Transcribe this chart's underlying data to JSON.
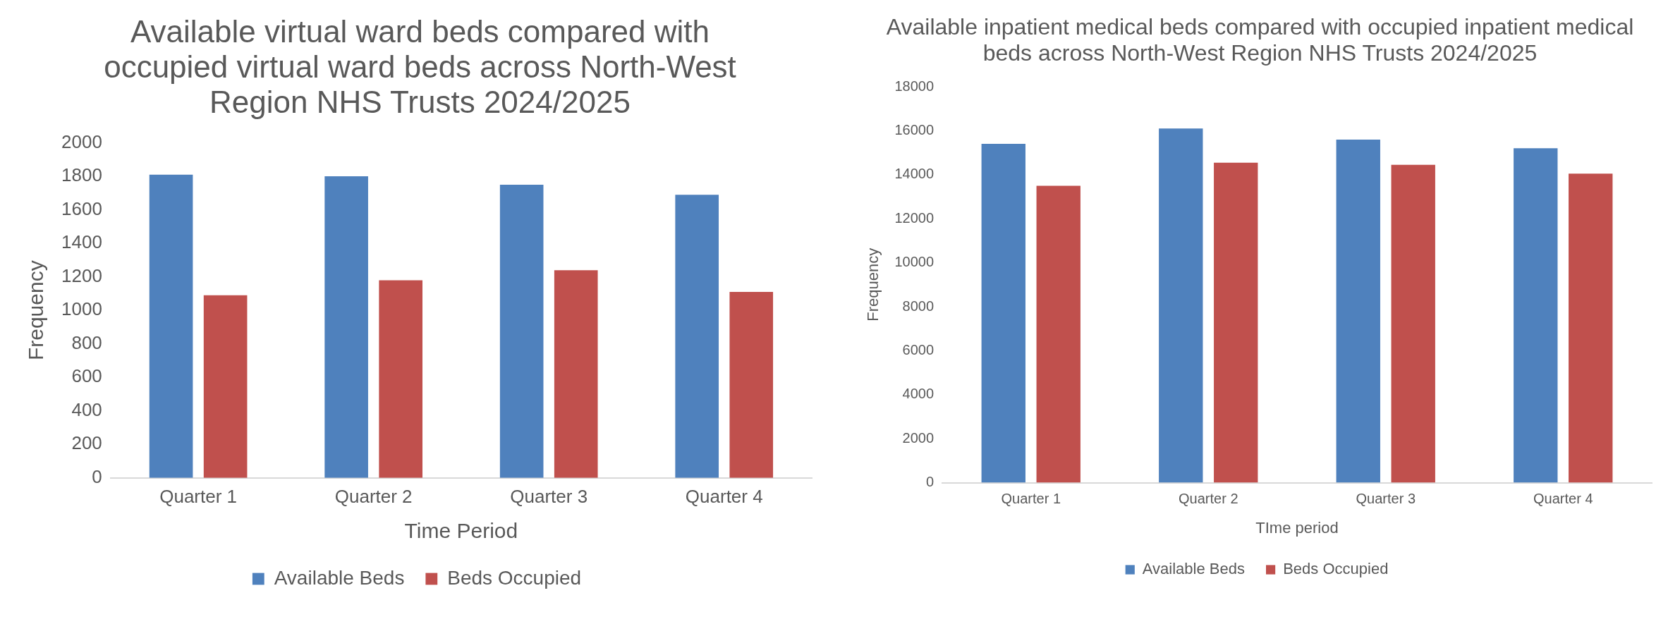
{
  "chart_data": [
    {
      "type": "bar",
      "title": "Available virtual ward beds compared with occupied virtual ward beds across North-West Region NHS Trusts 2024/2025",
      "xlabel": "Time Period",
      "ylabel": "Frequency",
      "categories": [
        "Quarter 1",
        "Quarter 2",
        "Quarter 3",
        "Quarter 4"
      ],
      "series": [
        {
          "name": "Available Beds",
          "color": "#4f81bd",
          "values": [
            1810,
            1800,
            1750,
            1690
          ]
        },
        {
          "name": "Beds Occupied",
          "color": "#c0504d",
          "values": [
            1090,
            1180,
            1240,
            1110
          ]
        }
      ],
      "ylim": [
        0,
        2000
      ],
      "yticks": [
        0,
        200,
        400,
        600,
        800,
        1000,
        1200,
        1400,
        1600,
        1800,
        2000
      ],
      "grid": false,
      "legend": "bottom"
    },
    {
      "type": "bar",
      "title": "Available inpatient medical beds compared with occupied inpatient medical beds across North-West Region NHS Trusts 2024/2025",
      "xlabel": "TIme period",
      "ylabel": "Frequency",
      "categories": [
        "Quarter 1",
        "Quarter 2",
        "Quarter 3",
        "Quarter 4"
      ],
      "series": [
        {
          "name": "Available Beds",
          "color": "#4f81bd",
          "values": [
            15400,
            16100,
            15600,
            15200
          ]
        },
        {
          "name": "Beds Occupied",
          "color": "#c0504d",
          "values": [
            13500,
            14550,
            14450,
            14050
          ]
        }
      ],
      "ylim": [
        0,
        18000
      ],
      "yticks": [
        0,
        2000,
        4000,
        6000,
        8000,
        10000,
        12000,
        14000,
        16000,
        18000
      ],
      "grid": false,
      "legend": "bottom"
    }
  ]
}
